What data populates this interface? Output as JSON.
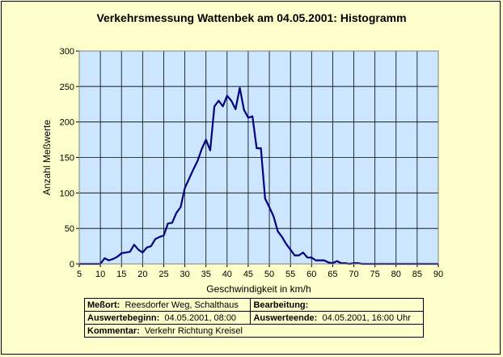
{
  "chart_data": {
    "type": "line",
    "title": "Verkehrsmessung Wattenbek am 04.05.2001: Histogramm",
    "xlabel": "Geschwindigkeit in km/h",
    "ylabel": "Anzahl Meßwerte",
    "xlim": [
      5,
      90
    ],
    "ylim": [
      0,
      300
    ],
    "xticks": [
      5,
      10,
      15,
      20,
      25,
      30,
      35,
      40,
      45,
      50,
      55,
      60,
      65,
      70,
      75,
      80,
      85,
      90
    ],
    "yticks": [
      0,
      50,
      100,
      150,
      200,
      250,
      300
    ],
    "grid": true,
    "series": [
      {
        "x": [
          5,
          6,
          7,
          8,
          9,
          10,
          11,
          12,
          13,
          14,
          15,
          16,
          17,
          18,
          19,
          20,
          21,
          22,
          23,
          24,
          25,
          26,
          27,
          28,
          29,
          30,
          31,
          32,
          33,
          34,
          35,
          36,
          37,
          38,
          39,
          40,
          41,
          42,
          43,
          44,
          45,
          46,
          47,
          48,
          49,
          50,
          51,
          52,
          53,
          54,
          55,
          56,
          57,
          58,
          59,
          60,
          61,
          62,
          63,
          64,
          65,
          66,
          67,
          68,
          69,
          70,
          71,
          72,
          73,
          74,
          75,
          76,
          77,
          78,
          79,
          80,
          81,
          82,
          83,
          84,
          85,
          86,
          87,
          88,
          89,
          90
        ],
        "y": [
          0,
          0,
          0,
          0,
          0,
          0,
          8,
          5,
          7,
          10,
          15,
          16,
          17,
          27,
          20,
          16,
          23,
          25,
          35,
          38,
          40,
          57,
          58,
          72,
          80,
          107,
          120,
          133,
          145,
          162,
          175,
          160,
          222,
          230,
          222,
          237,
          230,
          218,
          248,
          217,
          206,
          208,
          163,
          163,
          92,
          80,
          67,
          46,
          38,
          28,
          20,
          12,
          12,
          16,
          9,
          9,
          5,
          5,
          5,
          2,
          1,
          4,
          1,
          1,
          0,
          1,
          1,
          0,
          0,
          0,
          0,
          0,
          0,
          0,
          0,
          0,
          0,
          0,
          0,
          0,
          0,
          0,
          0,
          0,
          0,
          0
        ],
        "color": "#000080"
      }
    ]
  },
  "info": {
    "messort_label": "Meßort:",
    "messort_value": "Reesdorfer Weg, Schalthaus",
    "bearbeitung_label": "Bearbeitung:",
    "bearbeitung_value": "",
    "auswertebeginn_label": "Auswertebeginn:",
    "auswertebeginn_value": "04.05.2001, 08:00",
    "auswerteende_label": "Auswerteende:",
    "auswerteende_value": "04.05.2001, 16:00 Uhr",
    "kommentar_label": "Kommentar:",
    "kommentar_value": "Verkehr Richtung Kreisel"
  },
  "colors": {
    "background": "#ffffcc",
    "plot_area": "#cce6ff",
    "line": "#000080"
  }
}
